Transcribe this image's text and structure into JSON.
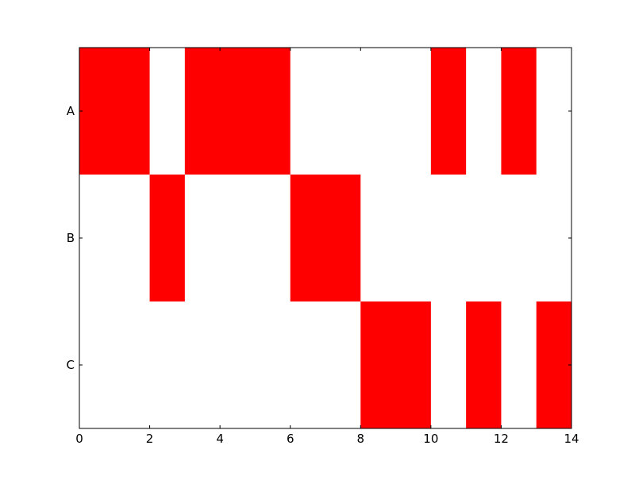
{
  "chart_data": {
    "type": "bar",
    "orientation": "horizontal-broken-bars",
    "title": "",
    "xlabel": "",
    "ylabel": "",
    "xlim": [
      0,
      14
    ],
    "x_ticks": [
      0,
      2,
      4,
      6,
      8,
      10,
      12,
      14
    ],
    "x_tick_labels": [
      "0",
      "2",
      "4",
      "6",
      "8",
      "10",
      "12",
      "14"
    ],
    "categories": [
      "A",
      "B",
      "C"
    ],
    "grid": false,
    "legend": "none",
    "bar_color": "#ff0000",
    "series": [
      {
        "category": "A",
        "intervals": [
          [
            0,
            2
          ],
          [
            3,
            6
          ],
          [
            10,
            11
          ],
          [
            12,
            13
          ]
        ]
      },
      {
        "category": "B",
        "intervals": [
          [
            2,
            3
          ],
          [
            6,
            8
          ]
        ]
      },
      {
        "category": "C",
        "intervals": [
          [
            8,
            10
          ],
          [
            11,
            12
          ],
          [
            13,
            14
          ]
        ]
      }
    ]
  }
}
